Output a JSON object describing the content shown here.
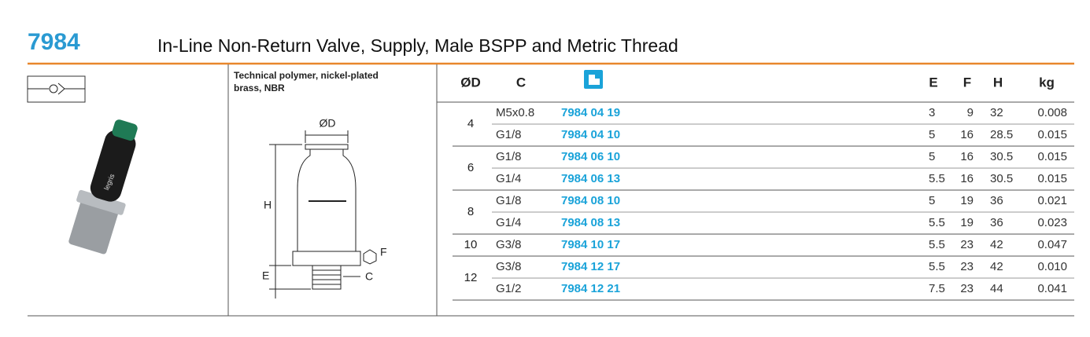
{
  "header": {
    "code": "7984",
    "title": "In-Line Non-Return Valve, Supply,  Male BSPP and Metric Thread"
  },
  "photo_label": "legris",
  "material": [
    "Technical polymer, nickel-plated",
    "brass, NBR"
  ],
  "diagram": {
    "d": "ØD",
    "h": "H",
    "e": "E",
    "f": "F",
    "c": "C"
  },
  "table": {
    "columns": [
      "ØD",
      "C",
      "E",
      "F",
      "H",
      "kg"
    ],
    "groups": [
      {
        "d": "4",
        "rows": [
          [
            "M5x0.8",
            "7984 04 19",
            "3",
            "9",
            "32",
            "0.008"
          ],
          [
            "G1/8",
            "7984 04 10",
            "5",
            "16",
            "28.5",
            "0.015"
          ]
        ]
      },
      {
        "d": "6",
        "rows": [
          [
            "G1/8",
            "7984 06 10",
            "5",
            "16",
            "30.5",
            "0.015"
          ],
          [
            "G1/4",
            "7984 06 13",
            "5.5",
            "16",
            "30.5",
            "0.015"
          ]
        ]
      },
      {
        "d": "8",
        "rows": [
          [
            "G1/8",
            "7984 08 10",
            "5",
            "19",
            "36",
            "0.021"
          ],
          [
            "G1/4",
            "7984 08 13",
            "5.5",
            "19",
            "36",
            "0.023"
          ]
        ]
      },
      {
        "d": "10",
        "rows": [
          [
            "G3/8",
            "7984 10 17",
            "5.5",
            "23",
            "42",
            "0.047"
          ]
        ]
      },
      {
        "d": "12",
        "rows": [
          [
            "G3/8",
            "7984 12 17",
            "5.5",
            "23",
            "42",
            "0.010"
          ],
          [
            "G1/2",
            "7984 12 21",
            "7.5",
            "23",
            "44",
            "0.041"
          ]
        ]
      }
    ]
  }
}
